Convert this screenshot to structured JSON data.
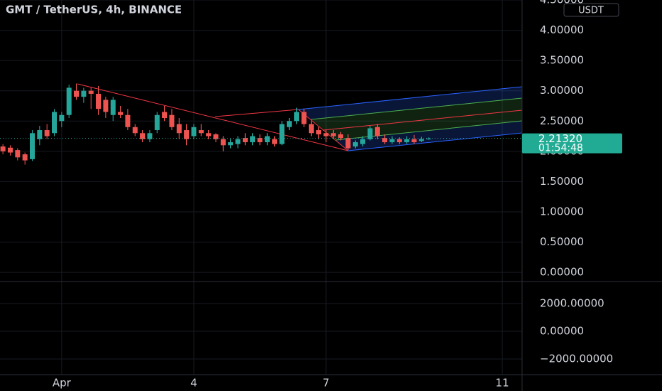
{
  "header": {
    "title": "GMT / TetherUS, 4h, BINANCE",
    "currency": "USDT"
  },
  "last_value": {
    "value": 2.2132,
    "label": "2.21320"
  },
  "countdown": "01:54:48",
  "chart_data": [
    {
      "type": "candlestick",
      "x": [
        -32,
        -28,
        -24,
        -20,
        -16,
        -12,
        -8,
        -4,
        0,
        4,
        8,
        12,
        16,
        20,
        24,
        28,
        32,
        36,
        40,
        44,
        48,
        52,
        56,
        60,
        64,
        68,
        72,
        76,
        80,
        84,
        88,
        92,
        96,
        100,
        104,
        108,
        112,
        116,
        120,
        124,
        128,
        132,
        136,
        140,
        144,
        148,
        152,
        156,
        160,
        164,
        168,
        172,
        176,
        180,
        184,
        188,
        192,
        196,
        200
      ],
      "open": [
        2.08,
        2.06,
        2.02,
        1.95,
        1.87,
        2.2,
        2.35,
        2.3,
        2.5,
        2.6,
        3.0,
        2.9,
        3.0,
        2.95,
        2.85,
        2.6,
        2.65,
        2.6,
        2.4,
        2.3,
        2.2,
        2.35,
        2.65,
        2.6,
        2.45,
        2.35,
        2.25,
        2.35,
        2.3,
        2.28,
        2.2,
        2.1,
        2.12,
        2.22,
        2.15,
        2.22,
        2.15,
        2.2,
        2.12,
        2.4,
        2.5,
        2.65,
        2.45,
        2.35,
        2.3,
        2.3,
        2.28,
        2.22,
        2.08,
        2.12,
        2.2,
        2.4,
        2.22,
        2.15,
        2.2,
        2.15,
        2.2,
        2.17,
        2.2
      ],
      "high": [
        2.12,
        2.1,
        2.05,
        1.98,
        2.35,
        2.42,
        2.45,
        2.7,
        2.65,
        3.1,
        3.12,
        3.05,
        3.05,
        3.08,
        2.9,
        2.9,
        2.75,
        2.7,
        2.45,
        2.35,
        2.35,
        2.65,
        2.75,
        2.7,
        2.55,
        2.45,
        2.45,
        2.45,
        2.35,
        2.3,
        2.25,
        2.2,
        2.25,
        2.3,
        2.3,
        2.28,
        2.3,
        2.25,
        2.5,
        2.55,
        2.72,
        2.7,
        2.5,
        2.4,
        2.35,
        2.35,
        2.32,
        2.28,
        2.18,
        2.25,
        2.42,
        2.45,
        2.28,
        2.25,
        2.23,
        2.25,
        2.27,
        2.24,
        2.23
      ],
      "low": [
        1.95,
        1.93,
        1.85,
        1.78,
        1.84,
        2.1,
        2.2,
        2.25,
        2.4,
        2.55,
        2.85,
        2.8,
        2.7,
        2.6,
        2.55,
        2.5,
        2.55,
        2.35,
        2.25,
        2.15,
        2.15,
        2.3,
        2.5,
        2.35,
        2.2,
        2.1,
        2.2,
        2.25,
        2.2,
        2.15,
        2.0,
        2.05,
        2.05,
        2.1,
        2.1,
        2.1,
        2.1,
        2.08,
        2.1,
        2.35,
        2.45,
        2.4,
        2.25,
        2.2,
        2.15,
        2.2,
        2.18,
        2.02,
        2.05,
        2.08,
        2.18,
        2.2,
        2.12,
        2.12,
        2.12,
        2.12,
        2.12,
        2.15,
        2.19
      ],
      "close": [
        2.0,
        1.98,
        1.9,
        1.85,
        2.3,
        2.35,
        2.25,
        2.65,
        2.6,
        3.05,
        2.9,
        3.0,
        2.95,
        2.7,
        2.65,
        2.85,
        2.6,
        2.4,
        2.3,
        2.2,
        2.3,
        2.6,
        2.55,
        2.4,
        2.3,
        2.2,
        2.4,
        2.3,
        2.25,
        2.2,
        2.1,
        2.15,
        2.2,
        2.15,
        2.25,
        2.15,
        2.25,
        2.12,
        2.45,
        2.5,
        2.65,
        2.45,
        2.3,
        2.28,
        2.25,
        2.25,
        2.22,
        2.05,
        2.15,
        2.2,
        2.38,
        2.25,
        2.15,
        2.2,
        2.15,
        2.2,
        2.15,
        2.2,
        2.21
      ],
      "up_color": "#26a69a",
      "down_color": "#ef5350",
      "xlim": [
        -33.6,
        250.8
      ],
      "xticks": [
        {
          "value": 0,
          "label": "Apr"
        },
        {
          "value": 72,
          "label": "4"
        },
        {
          "value": 144,
          "label": "7"
        },
        {
          "value": 240,
          "label": "11"
        }
      ],
      "ylim": [
        -0.14,
        4.5
      ],
      "yticks": [
        {
          "value": 0,
          "label": "0.00000"
        },
        {
          "value": 0.5,
          "label": "0.50000"
        },
        {
          "value": 1,
          "label": "1.00000"
        },
        {
          "value": 1.5,
          "label": "1.50000"
        },
        {
          "value": 2,
          "label": "2.00000"
        },
        {
          "value": 2.5,
          "label": "2.50000"
        },
        {
          "value": 3,
          "label": "3.00000"
        },
        {
          "value": 3.5,
          "label": "3.50000"
        },
        {
          "value": 4,
          "label": "4.00000"
        },
        {
          "value": 4.5,
          "label": "4.50000"
        }
      ],
      "grid": true
    },
    {
      "type": "line",
      "ylim": [
        -3026,
        3538
      ],
      "yticks": [
        {
          "value": 2000,
          "label": "2000.00000"
        },
        {
          "value": 0,
          "label": "0.00000"
        },
        {
          "value": -2000,
          "label": "−2000.00000"
        }
      ],
      "grid": true
    }
  ]
}
